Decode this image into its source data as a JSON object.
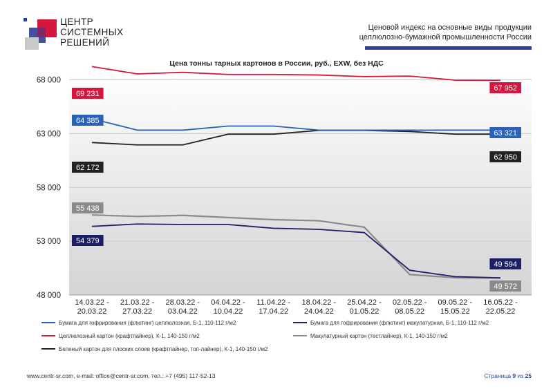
{
  "header": {
    "logo_lines": [
      "ЦЕНТР",
      "СИСТЕМНЫХ",
      "РЕШЕНИЙ"
    ],
    "title_line1": "Ценовой  индекс  на  основные виды продукции",
    "title_line2": "целлюлозно-бумажной промышленности России",
    "accent_color": "#2f3d96"
  },
  "footer": {
    "contacts": "www.centr-sr.com, e-mail: office@centr-sr.com, тел.: +7 (495) 117-52-13",
    "page_prefix": "Страница ",
    "page_current": "9",
    "page_mid": " из ",
    "page_total": "25"
  },
  "chart_data": {
    "type": "line",
    "title": "Цена тонны тарных картонов в России, руб., EXW, без НДС",
    "xlabel": "",
    "ylabel": "",
    "ylim": [
      48000,
      69000
    ],
    "yticks": [
      48000,
      53000,
      58000,
      63000,
      68000
    ],
    "ytick_labels": [
      "48 000",
      "53 000",
      "58 000",
      "63 000",
      "68 000"
    ],
    "categories": [
      [
        "14.03.22 -",
        "20.03.22"
      ],
      [
        "21.03.22 -",
        "27.03.22"
      ],
      [
        "28.03.22 -",
        "03.04.22"
      ],
      [
        "04.04.22 -",
        "10.04.22"
      ],
      [
        "11.04.22 -",
        "17.04.22"
      ],
      [
        "18.04.22 -",
        "24.04.22"
      ],
      [
        "25.04.22 -",
        "01.05.22"
      ],
      [
        "02.05.22 -",
        "08.05.22"
      ],
      [
        "09.05.22 -",
        "15.05.22"
      ],
      [
        "16.05.22 -",
        "22.05.22"
      ]
    ],
    "grid": true,
    "legend_position": "bottom",
    "series": [
      {
        "name": "Бумага для гофрирования (флютинг) целлюлозная, Б-1, 110-112 г/м2",
        "color": "#2a62b8",
        "values": [
          64385,
          63321,
          63321,
          63700,
          63700,
          63321,
          63321,
          63321,
          63321,
          63321
        ],
        "start_label": "64 385",
        "end_label": "63 321"
      },
      {
        "name": "Бумага для гофрирования (флютинг) макулатурная, Б-1, 110-112 г/м2",
        "color": "#1c1f66",
        "values": [
          54379,
          54600,
          54550,
          54550,
          54200,
          54100,
          53800,
          50300,
          49700,
          49594
        ],
        "start_label": "54 379",
        "end_label": "49 594"
      },
      {
        "name": "Целлюлозный картон (крафтлайнер), К-1, 140-150 г/м2",
        "color": "#d6163c",
        "values": [
          69231,
          68550,
          68700,
          68500,
          68500,
          68450,
          68300,
          68350,
          67970,
          67952
        ],
        "start_label": "69 231",
        "end_label": "67 952"
      },
      {
        "name": "Макулатурный картон (тестлайнер), К-1, 140-150 г/м2",
        "color": "#8a8a8a",
        "values": [
          55438,
          55300,
          55400,
          55200,
          55000,
          54900,
          54300,
          49900,
          49600,
          49572
        ],
        "start_label": "55 438",
        "end_label": "49 572"
      },
      {
        "name": "Беленый картон для плоских слоев (крафтлайнер, топ-лайнер), К-1, 140-150 г/м2",
        "color": "#222222",
        "values": [
          62172,
          61950,
          61950,
          62950,
          62950,
          63300,
          63300,
          63200,
          62950,
          62950
        ],
        "start_label": "62 172",
        "end_label": "62 950"
      }
    ]
  }
}
